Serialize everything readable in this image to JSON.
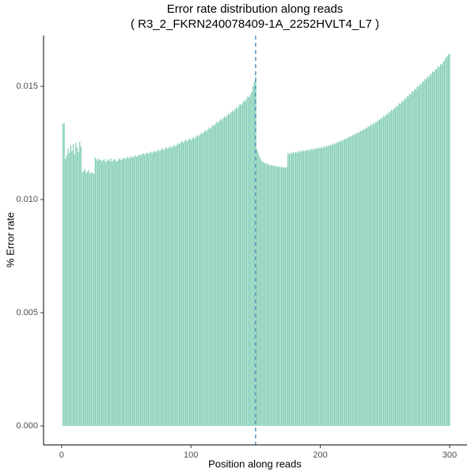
{
  "chart_data": {
    "type": "bar",
    "title": "Error rate distribution along reads",
    "subtitle": "( R3_2_FKRN240078409-1A_2252HVLT4_L7 )",
    "x_label": "Position along reads",
    "y_label": "% Error rate",
    "color": "#84cfb5",
    "vline": 150,
    "vline_color": "#3a80b8",
    "xlim": [
      -14,
      313.5
    ],
    "ylim": [
      -0.00084,
      0.01724
    ],
    "xticks": [
      0,
      100,
      200,
      300
    ],
    "yticks": [
      {
        "value": 0,
        "label": "0.000"
      },
      {
        "value": 0.005,
        "label": "0.005"
      },
      {
        "value": 0.01,
        "label": "0.010"
      },
      {
        "value": 0.015,
        "label": "0.015"
      }
    ],
    "x": [
      1,
      2,
      3,
      4,
      5,
      6,
      7,
      8,
      9,
      10,
      11,
      12,
      13,
      14,
      15,
      16,
      17,
      18,
      19,
      20,
      21,
      22,
      23,
      24,
      25,
      26,
      27,
      28,
      29,
      30,
      31,
      32,
      33,
      34,
      35,
      36,
      37,
      38,
      39,
      40,
      41,
      42,
      43,
      44,
      45,
      46,
      47,
      48,
      49,
      50,
      51,
      52,
      53,
      54,
      55,
      56,
      57,
      58,
      59,
      60,
      61,
      62,
      63,
      64,
      65,
      66,
      67,
      68,
      69,
      70,
      71,
      72,
      73,
      74,
      75,
      76,
      77,
      78,
      79,
      80,
      81,
      82,
      83,
      84,
      85,
      86,
      87,
      88,
      89,
      90,
      91,
      92,
      93,
      94,
      95,
      96,
      97,
      98,
      99,
      100,
      101,
      102,
      103,
      104,
      105,
      106,
      107,
      108,
      109,
      110,
      111,
      112,
      113,
      114,
      115,
      116,
      117,
      118,
      119,
      120,
      121,
      122,
      123,
      124,
      125,
      126,
      127,
      128,
      129,
      130,
      131,
      132,
      133,
      134,
      135,
      136,
      137,
      138,
      139,
      140,
      141,
      142,
      143,
      144,
      145,
      146,
      147,
      148,
      149,
      150,
      151,
      152,
      153,
      154,
      155,
      156,
      157,
      158,
      159,
      160,
      161,
      162,
      163,
      164,
      165,
      166,
      167,
      168,
      169,
      170,
      171,
      172,
      173,
      174,
      175,
      176,
      177,
      178,
      179,
      180,
      181,
      182,
      183,
      184,
      185,
      186,
      187,
      188,
      189,
      190,
      191,
      192,
      193,
      194,
      195,
      196,
      197,
      198,
      199,
      200,
      201,
      202,
      203,
      204,
      205,
      206,
      207,
      208,
      209,
      210,
      211,
      212,
      213,
      214,
      215,
      216,
      217,
      218,
      219,
      220,
      221,
      222,
      223,
      224,
      225,
      226,
      227,
      228,
      229,
      230,
      231,
      232,
      233,
      234,
      235,
      236,
      237,
      238,
      239,
      240,
      241,
      242,
      243,
      244,
      245,
      246,
      247,
      248,
      249,
      250,
      251,
      252,
      253,
      254,
      255,
      256,
      257,
      258,
      259,
      260,
      261,
      262,
      263,
      264,
      265,
      266,
      267,
      268,
      269,
      270,
      271,
      272,
      273,
      274,
      275,
      276,
      277,
      278,
      279,
      280,
      281,
      282,
      283,
      284,
      285,
      286,
      287,
      288,
      289,
      290,
      291,
      292,
      293,
      294,
      295,
      296,
      297,
      298,
      299,
      300
    ],
    "values": [
      0.01335,
      0.01338,
      0.0118,
      0.01195,
      0.01225,
      0.01205,
      0.0124,
      0.01215,
      0.01245,
      0.012,
      0.0125,
      0.0123,
      0.0121,
      0.01255,
      0.01235,
      0.0112,
      0.01125,
      0.01135,
      0.01118,
      0.01122,
      0.0113,
      0.01115,
      0.0112,
      0.01118,
      0.01112,
      0.01185,
      0.01178,
      0.01172,
      0.0118,
      0.01175,
      0.01168,
      0.01175,
      0.0118,
      0.01165,
      0.01172,
      0.01178,
      0.0117,
      0.01182,
      0.01166,
      0.01174,
      0.01179,
      0.01171,
      0.01168,
      0.01177,
      0.01182,
      0.01175,
      0.0118,
      0.01186,
      0.01178,
      0.01183,
      0.01189,
      0.01181,
      0.01186,
      0.01192,
      0.01185,
      0.0119,
      0.01196,
      0.01188,
      0.01193,
      0.01199,
      0.01194,
      0.012,
      0.01204,
      0.01197,
      0.01203,
      0.01208,
      0.01201,
      0.01207,
      0.01212,
      0.01205,
      0.01211,
      0.01216,
      0.01209,
      0.01215,
      0.01221,
      0.01214,
      0.0122,
      0.01226,
      0.01219,
      0.01225,
      0.01231,
      0.01224,
      0.0123,
      0.01236,
      0.01229,
      0.01235,
      0.01242,
      0.01234,
      0.01241,
      0.01248,
      0.01244,
      0.01252,
      0.01258,
      0.0125,
      0.01257,
      0.01264,
      0.01256,
      0.01263,
      0.0127,
      0.01262,
      0.01269,
      0.01277,
      0.0127,
      0.01278,
      0.01285,
      0.01279,
      0.01287,
      0.01295,
      0.0129,
      0.01298,
      0.01306,
      0.013,
      0.01309,
      0.01317,
      0.01312,
      0.01321,
      0.0133,
      0.01325,
      0.01335,
      0.01344,
      0.01338,
      0.01348,
      0.01356,
      0.0135,
      0.0136,
      0.01368,
      0.01362,
      0.01372,
      0.01381,
      0.01375,
      0.01385,
      0.01394,
      0.01388,
      0.01398,
      0.01408,
      0.01402,
      0.01413,
      0.01423,
      0.01417,
      0.01428,
      0.01439,
      0.01434,
      0.01446,
      0.01457,
      0.01452,
      0.01464,
      0.01476,
      0.015,
      0.0152,
      0.01542,
      0.01222,
      0.01205,
      0.0119,
      0.01178,
      0.0117,
      0.01165,
      0.0116,
      0.01162,
      0.01155,
      0.01158,
      0.0115,
      0.01153,
      0.01148,
      0.01151,
      0.01146,
      0.01149,
      0.01143,
      0.01147,
      0.01142,
      0.01145,
      0.01141,
      0.01144,
      0.0114,
      0.01143,
      0.01205,
      0.012,
      0.01208,
      0.01203,
      0.0121,
      0.01205,
      0.01212,
      0.01207,
      0.01214,
      0.01209,
      0.01216,
      0.01211,
      0.01218,
      0.01213,
      0.0122,
      0.01215,
      0.01222,
      0.01217,
      0.01224,
      0.01219,
      0.01226,
      0.01221,
      0.01228,
      0.01223,
      0.0123,
      0.01226,
      0.01233,
      0.01228,
      0.01236,
      0.01231,
      0.01239,
      0.01234,
      0.01242,
      0.01238,
      0.01246,
      0.01242,
      0.0125,
      0.01246,
      0.01254,
      0.01251,
      0.01259,
      0.01256,
      0.01264,
      0.01261,
      0.01269,
      0.01266,
      0.01275,
      0.01272,
      0.0128,
      0.01278,
      0.01286,
      0.01283,
      0.01292,
      0.01289,
      0.01298,
      0.01295,
      0.01304,
      0.01301,
      0.0131,
      0.01308,
      0.01317,
      0.01314,
      0.01324,
      0.01321,
      0.01331,
      0.01328,
      0.01338,
      0.01335,
      0.01345,
      0.01342,
      0.01353,
      0.0135,
      0.01361,
      0.01358,
      0.01369,
      0.01366,
      0.01378,
      0.01375,
      0.01387,
      0.01384,
      0.01396,
      0.01393,
      0.01405,
      0.01403,
      0.01415,
      0.01412,
      0.01425,
      0.01422,
      0.01435,
      0.01432,
      0.01445,
      0.01443,
      0.01456,
      0.01454,
      0.01467,
      0.01465,
      0.01478,
      0.01476,
      0.01489,
      0.01487,
      0.015,
      0.01498,
      0.01511,
      0.01509,
      0.01522,
      0.0152,
      0.01533,
      0.01531,
      0.01544,
      0.01542,
      0.01555,
      0.01553,
      0.01566,
      0.01564,
      0.01577,
      0.01575,
      0.01588,
      0.01586,
      0.01598,
      0.01596,
      0.01608,
      0.01614,
      0.01626,
      0.01632,
      0.0164,
      0.01645
    ]
  }
}
